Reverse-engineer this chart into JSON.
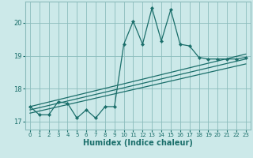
{
  "title": "",
  "xlabel": "Humidex (Indice chaleur)",
  "bg_color": "#cce9e9",
  "grid_color": "#8bbcbc",
  "line_color": "#1a6e6a",
  "xlim": [
    -0.5,
    23.5
  ],
  "ylim": [
    16.75,
    20.65
  ],
  "xticks": [
    0,
    1,
    2,
    3,
    4,
    5,
    6,
    7,
    8,
    9,
    10,
    11,
    12,
    13,
    14,
    15,
    16,
    17,
    18,
    19,
    20,
    21,
    22,
    23
  ],
  "yticks": [
    17,
    18,
    19,
    20
  ],
  "series_zigzag": {
    "x": [
      0,
      1,
      2,
      3,
      4,
      5,
      6,
      7,
      8,
      9,
      10,
      11,
      12,
      13,
      14,
      15,
      16,
      17,
      18,
      19,
      20,
      21,
      22,
      23
    ],
    "y": [
      17.45,
      17.2,
      17.2,
      17.6,
      17.55,
      17.1,
      17.35,
      17.1,
      17.45,
      17.45,
      19.35,
      20.05,
      19.35,
      20.45,
      19.45,
      20.4,
      19.35,
      19.3,
      18.95,
      18.9,
      18.9,
      18.9,
      18.9,
      18.95
    ]
  },
  "series_line1": {
    "x": [
      0,
      23
    ],
    "y": [
      17.45,
      19.05
    ]
  },
  "series_line2": {
    "x": [
      0,
      23
    ],
    "y": [
      17.35,
      18.9
    ]
  },
  "series_line3": {
    "x": [
      0,
      23
    ],
    "y": [
      17.25,
      18.75
    ]
  },
  "label_fontsize": 7,
  "tick_fontsize": 6
}
